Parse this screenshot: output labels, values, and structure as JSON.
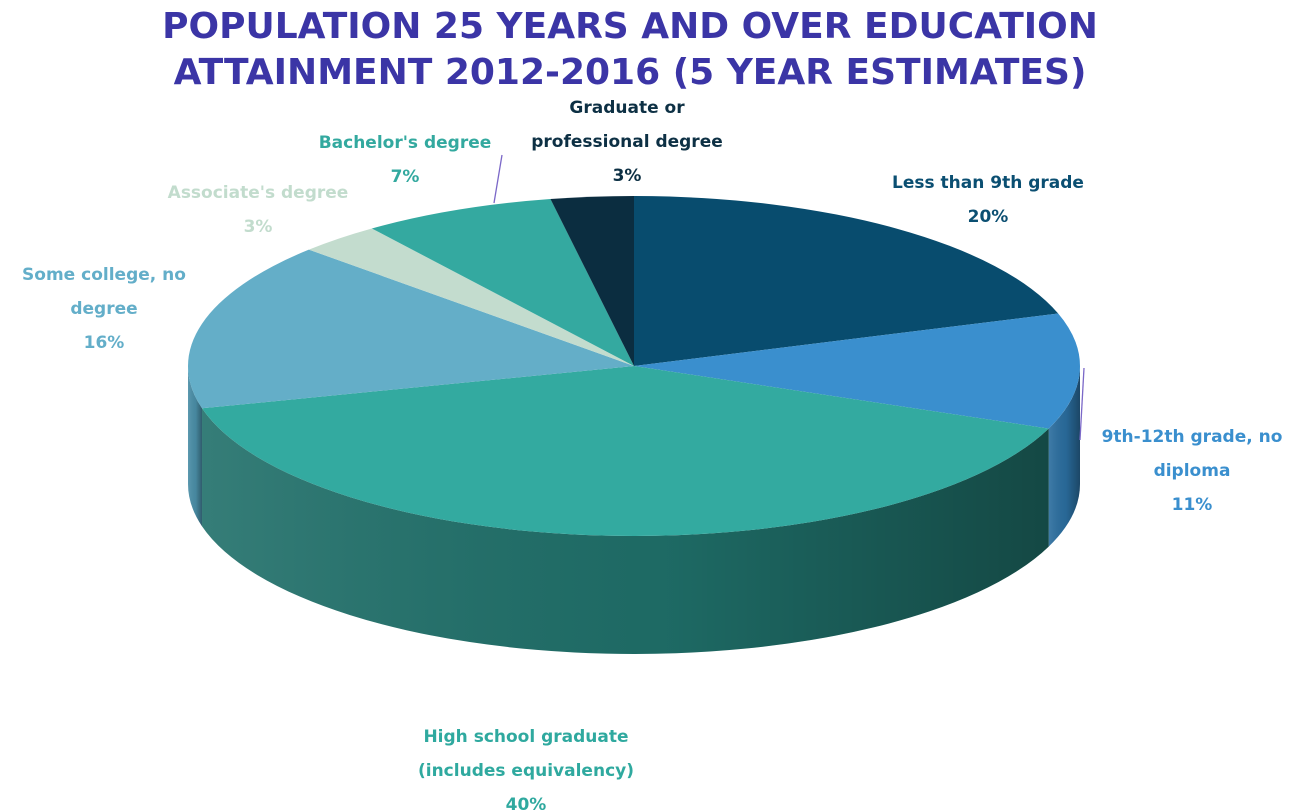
{
  "chart_data": {
    "type": "pie",
    "title_line1": "POPULATION 25 YEARS AND OVER EDUCATION",
    "title_line2": "ATTAINMENT 2012-2016 (5 YEAR ESTIMATES)",
    "slices": [
      {
        "lines": [
          "Less than 9th grade"
        ],
        "pct": "20%",
        "value": 20,
        "color": "#084c6e",
        "side": "#063a55",
        "label_color": "#0b4f72"
      },
      {
        "lines": [
          "9th-12th grade, no",
          "diploma"
        ],
        "pct": "11%",
        "value": 11,
        "color": "#3a8fce",
        "side": "#2a6d9e",
        "label_color": "#3a8fce"
      },
      {
        "lines": [
          "High school graduate",
          "(includes equivalency)"
        ],
        "pct": "40%",
        "value": 40,
        "color": "#33aaa0",
        "side": "#1f6f69",
        "label_color": "#2fa99f"
      },
      {
        "lines": [
          "Some college, no",
          "degree"
        ],
        "pct": "16%",
        "value": 16,
        "color": "#64aec8",
        "side": "#4a8ea7",
        "label_color": "#63aec9"
      },
      {
        "lines": [
          "Associate's degree"
        ],
        "pct": "3%",
        "value": 3,
        "color": "#c3dcce",
        "side": "#9fbcab",
        "label_color": "#c2dccd"
      },
      {
        "lines": [
          "Bachelor's degree"
        ],
        "pct": "7%",
        "value": 7,
        "color": "#34a9a0",
        "side": "#24837b",
        "label_color": "#33a99f"
      },
      {
        "lines": [
          "Graduate or",
          "professional degree"
        ],
        "pct": "3%",
        "value": 3,
        "color": "#0b2d40",
        "side": "#061c29",
        "label_color": "#0d3044"
      }
    ]
  }
}
